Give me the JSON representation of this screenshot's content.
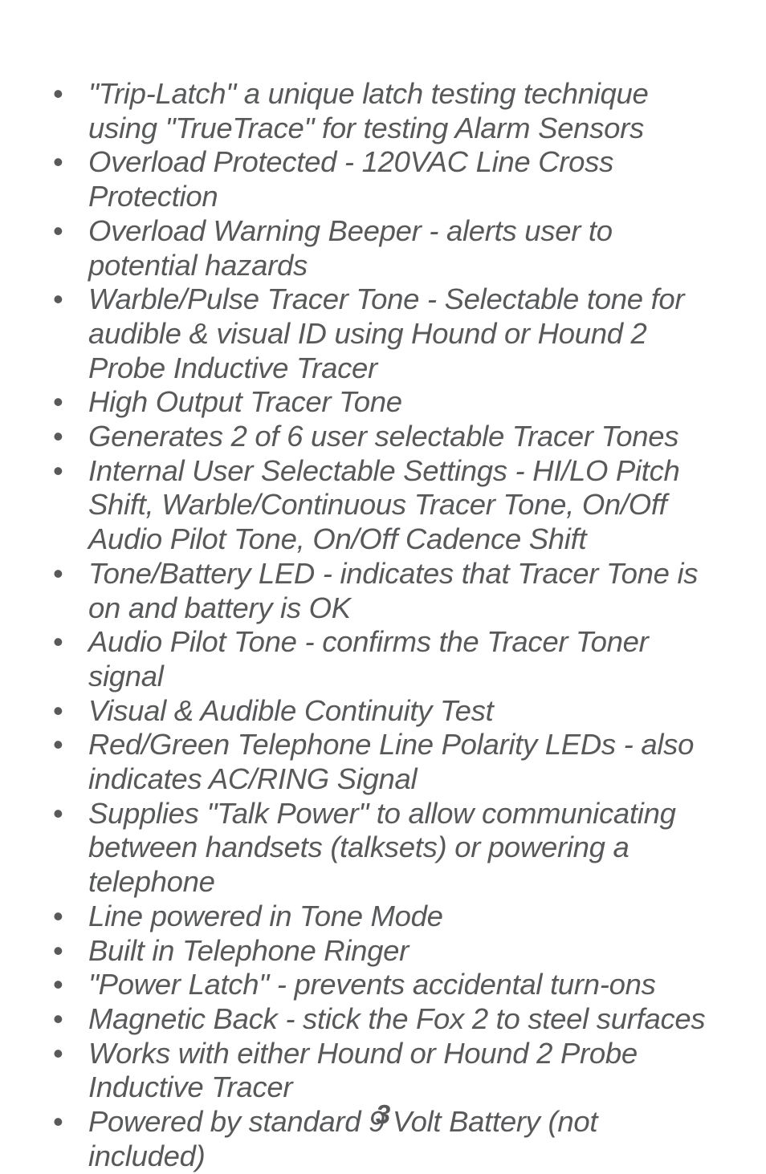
{
  "text_color": "#58595b",
  "background_color": "#ffffff",
  "font_size_pt": 27,
  "page_number_font_size_pt": 25,
  "features": [
    "\"Trip-Latch\" a unique latch testing technique using \"TrueTrace\" for testing Alarm Sensors",
    "Overload Protected - 120VAC Line Cross Protection",
    "Overload Warning Beeper - alerts user to potential hazards",
    "Warble/Pulse Tracer Tone - Selectable tone for audible & visual ID using Hound or Hound 2 Probe Inductive Tracer",
    "High Output Tracer Tone",
    "Generates 2 of 6 user selectable Tracer Tones",
    "Internal User Selectable Settings - HI/LO Pitch Shift, Warble/Continuous Tracer Tone, On/Off Audio Pilot Tone, On/Off Cadence Shift",
    "Tone/Battery LED - indicates that Tracer Tone is on and battery is OK",
    "Audio Pilot Tone - confirms the Tracer Toner signal",
    "Visual & Audible Continuity Test",
    "Red/Green Telephone Line Polarity LEDs - also indicates AC/RING Signal",
    "Supplies \"Talk Power\" to allow communicating between handsets (talksets) or powering a telephone",
    "Line powered in Tone Mode",
    "Built in Telephone Ringer",
    "\"Power Latch\" - prevents accidental turn-ons",
    "Magnetic Back - stick the Fox 2 to steel surfaces",
    "Works with either Hound or Hound 2 Probe Inductive Tracer",
    "Powered by standard 9 Volt Battery (not included)"
  ],
  "page_number": "3"
}
